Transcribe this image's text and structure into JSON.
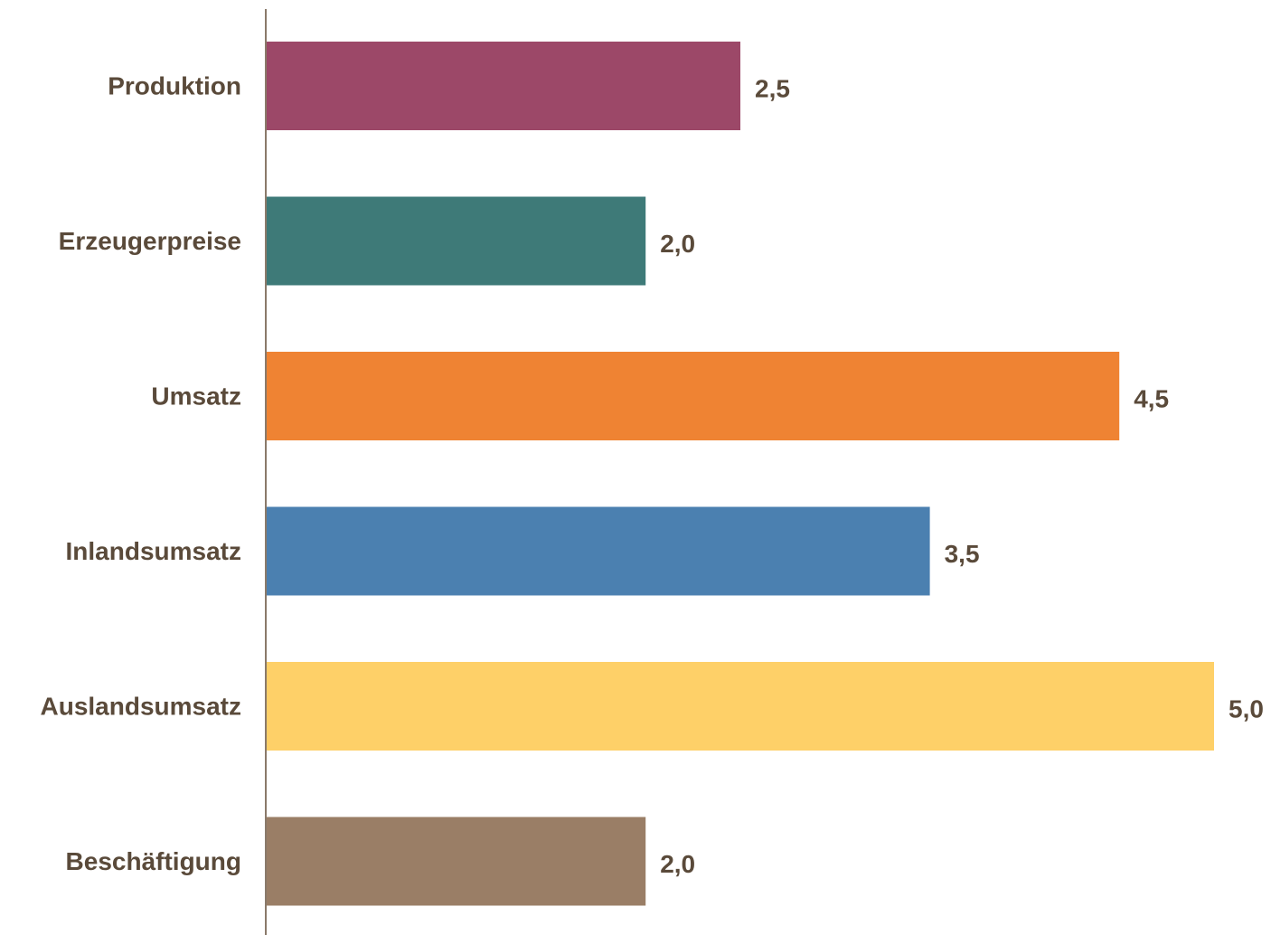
{
  "chart_data": {
    "type": "bar",
    "orientation": "horizontal",
    "title": "",
    "xlabel": "",
    "ylabel": "",
    "categories": [
      "Produktion",
      "Erzeugerpreise",
      "Umsatz",
      "Inlandsumsatz",
      "Auslandsumsatz",
      "Beschäftigung"
    ],
    "values": [
      2.5,
      2.0,
      4.5,
      3.5,
      5.0,
      2.0
    ],
    "value_labels": [
      "2,5",
      "2,0",
      "4,5",
      "3,5",
      "5,0",
      "2,0"
    ],
    "colors": [
      "#9c4868",
      "#3e7a78",
      "#ef8333",
      "#4b80b0",
      "#fed068",
      "#9a7e66"
    ],
    "xlim": [
      0,
      5
    ],
    "grid": false,
    "legend": "none"
  },
  "style": {
    "axis_color": "#8a7a6a",
    "text_color": "#5a4a3a"
  }
}
